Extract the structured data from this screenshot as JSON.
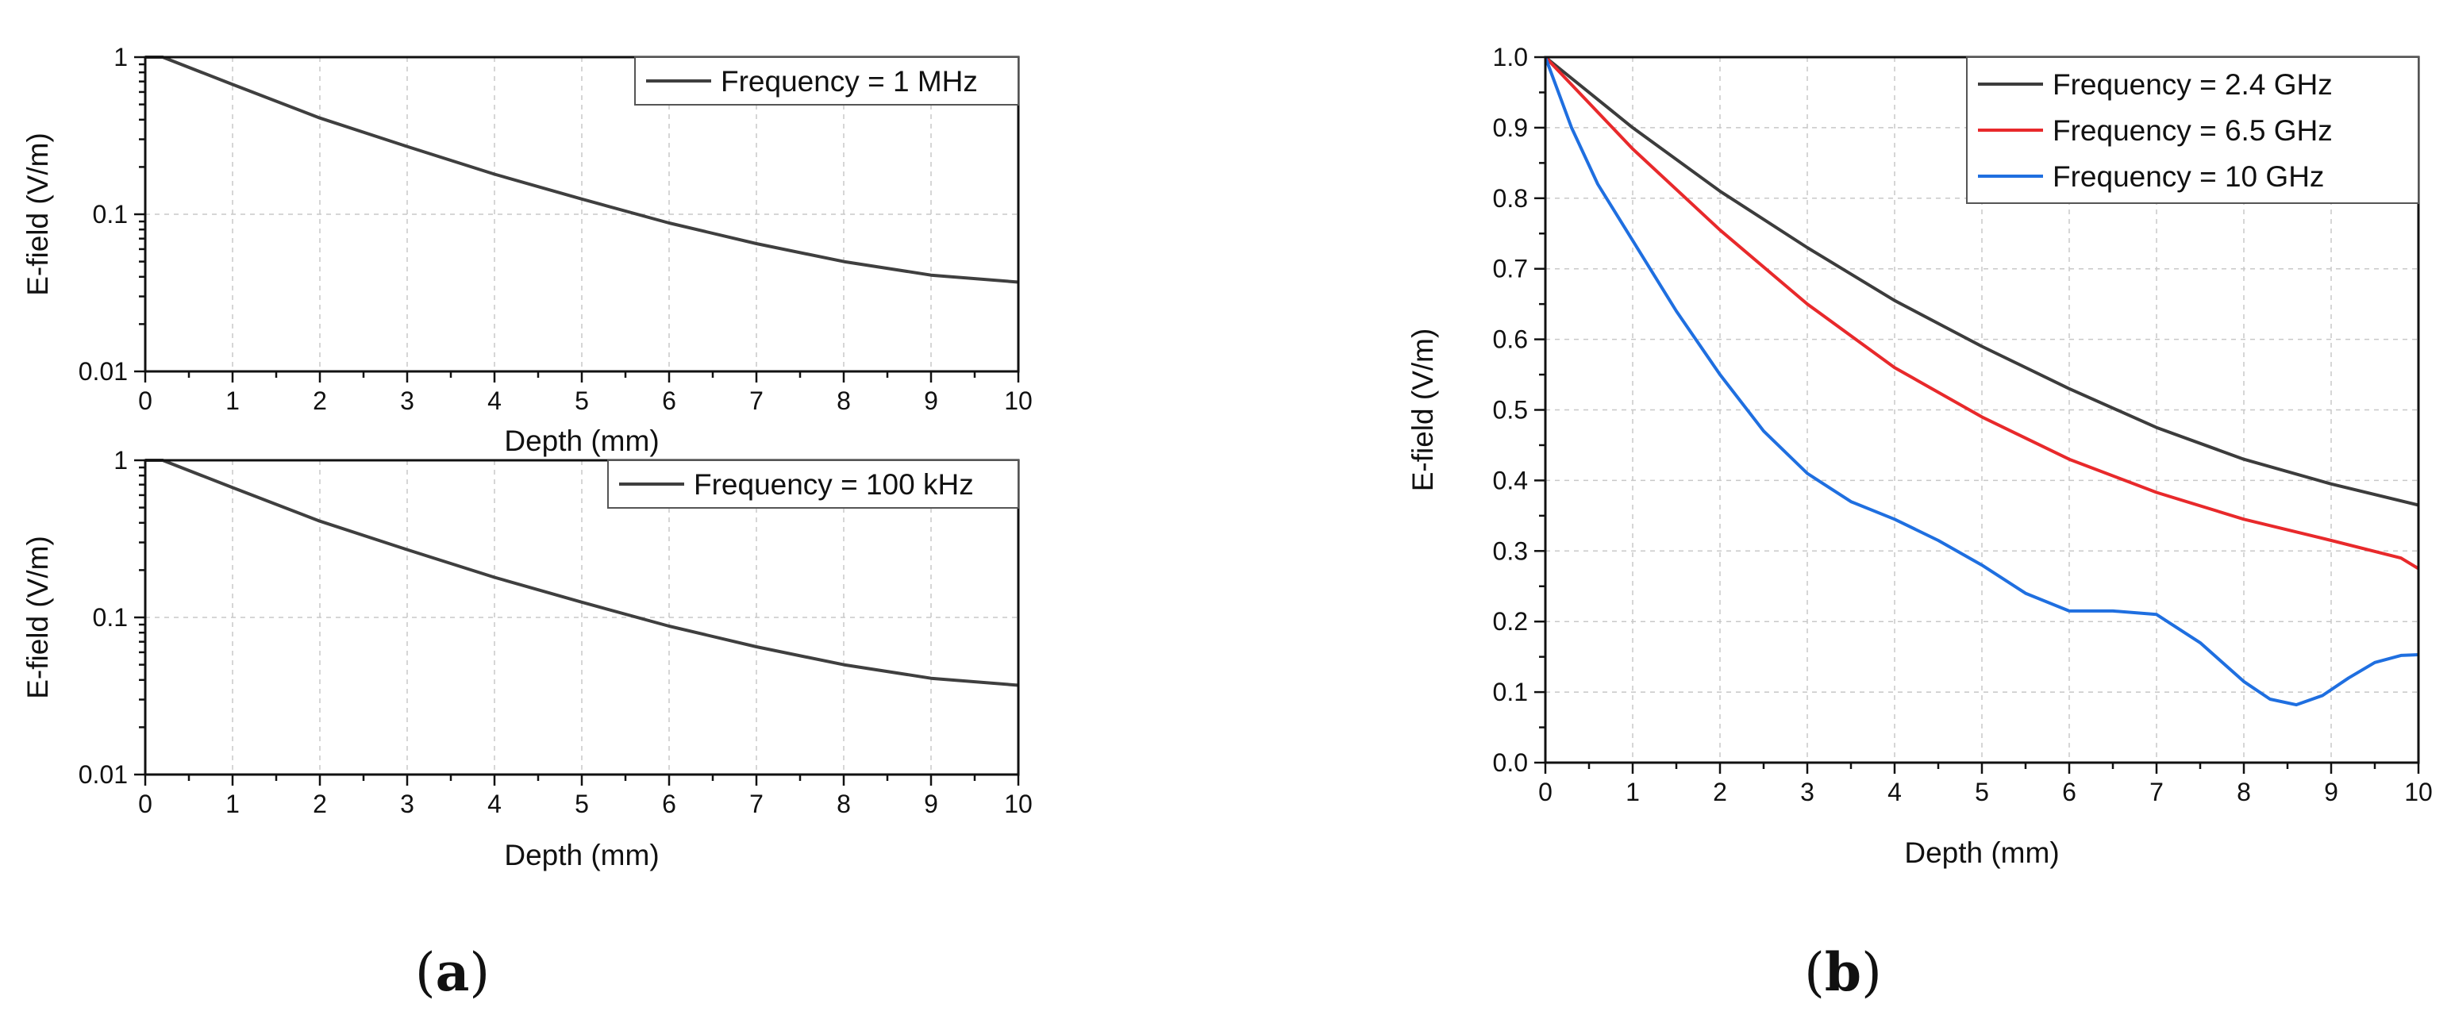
{
  "chart_data": [
    {
      "id": "a-top",
      "type": "line",
      "yscale": "log",
      "xlabel": "Depth (mm)",
      "ylabel": "E-field (V/m)",
      "xlim": [
        0,
        10
      ],
      "ylim": [
        0.01,
        1
      ],
      "xticks": [
        "0",
        "1",
        "2",
        "3",
        "4",
        "5",
        "6",
        "7",
        "8",
        "9",
        "10"
      ],
      "yticks": [
        "0.01",
        "0.1",
        "1"
      ],
      "grid": true,
      "legend_position": "top-right",
      "series": [
        {
          "name": "Frequency = 1 MHz",
          "color": "#3f3f3f",
          "x": [
            0,
            0.2,
            1,
            2,
            3,
            4,
            5,
            6,
            7,
            8,
            9,
            10
          ],
          "y": [
            1,
            1,
            0.67,
            0.41,
            0.27,
            0.18,
            0.125,
            0.088,
            0.065,
            0.05,
            0.041,
            0.037
          ]
        }
      ]
    },
    {
      "id": "a-bottom",
      "type": "line",
      "yscale": "log",
      "xlabel": "Depth (mm)",
      "ylabel": "E-field (V/m)",
      "xlim": [
        0,
        10
      ],
      "ylim": [
        0.01,
        1
      ],
      "xticks": [
        "0",
        "1",
        "2",
        "3",
        "4",
        "5",
        "6",
        "7",
        "8",
        "9",
        "10"
      ],
      "yticks": [
        "0.01",
        "0.1",
        "1"
      ],
      "grid": true,
      "legend_position": "top-right",
      "series": [
        {
          "name": "Frequency = 100 kHz",
          "color": "#3f3f3f",
          "x": [
            0,
            0.2,
            1,
            2,
            3,
            4,
            5,
            6,
            7,
            8,
            9,
            10
          ],
          "y": [
            1,
            1,
            0.67,
            0.41,
            0.27,
            0.18,
            0.125,
            0.088,
            0.065,
            0.05,
            0.041,
            0.037
          ]
        }
      ]
    },
    {
      "id": "b",
      "type": "line",
      "yscale": "linear",
      "xlabel": "Depth (mm)",
      "ylabel": "E-field (V/m)",
      "xlim": [
        0,
        10
      ],
      "ylim": [
        0,
        1
      ],
      "xticks": [
        "0",
        "1",
        "2",
        "3",
        "4",
        "5",
        "6",
        "7",
        "8",
        "9",
        "10"
      ],
      "yticks": [
        "0.0",
        "0.1",
        "0.2",
        "0.3",
        "0.4",
        "0.5",
        "0.6",
        "0.7",
        "0.8",
        "0.9",
        "1.0"
      ],
      "grid": true,
      "legend_position": "top-right",
      "series": [
        {
          "name": "Frequency = 2.4 GHz",
          "color": "#3c3c3c",
          "x": [
            0,
            1,
            2,
            3,
            4,
            5,
            6,
            7,
            8,
            9,
            10
          ],
          "y": [
            1.0,
            0.9,
            0.81,
            0.73,
            0.655,
            0.59,
            0.53,
            0.475,
            0.43,
            0.395,
            0.365
          ]
        },
        {
          "name": "Frequency = 6.5 GHz",
          "color": "#e8292b",
          "x": [
            0,
            1,
            2,
            3,
            4,
            5,
            6,
            7,
            8,
            9,
            9.8,
            10
          ],
          "y": [
            1.0,
            0.87,
            0.755,
            0.65,
            0.56,
            0.49,
            0.43,
            0.383,
            0.345,
            0.315,
            0.29,
            0.275
          ]
        },
        {
          "name": "Frequency = 10 GHz",
          "color": "#1f6fe0",
          "x": [
            0,
            0.3,
            0.6,
            1,
            1.5,
            2,
            2.5,
            3,
            3.5,
            4,
            4.5,
            5,
            5.5,
            6,
            6.5,
            7,
            7.5,
            8,
            8.3,
            8.6,
            8.9,
            9.2,
            9.5,
            9.8,
            10
          ],
          "y": [
            1.0,
            0.9,
            0.82,
            0.74,
            0.64,
            0.55,
            0.47,
            0.41,
            0.37,
            0.345,
            0.315,
            0.28,
            0.24,
            0.215,
            0.215,
            0.21,
            0.17,
            0.115,
            0.09,
            0.082,
            0.095,
            0.12,
            0.142,
            0.152,
            0.153
          ]
        }
      ]
    }
  ],
  "panel_labels": {
    "a": "a",
    "b": "b",
    "open": "(",
    "close": ")"
  }
}
